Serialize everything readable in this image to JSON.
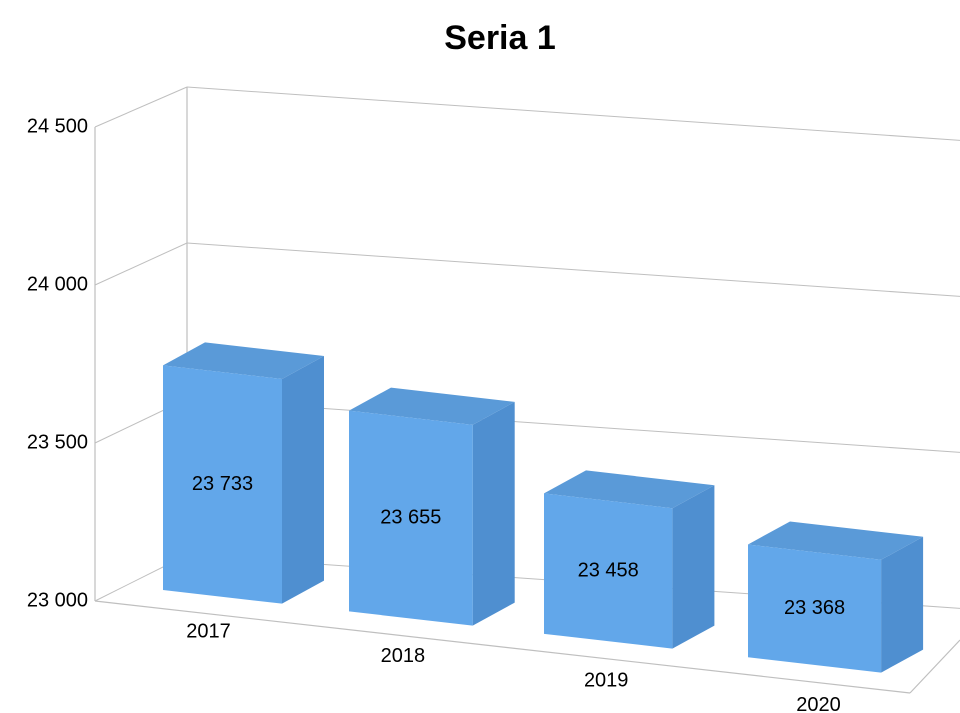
{
  "chart_data": {
    "type": "bar3d",
    "title": "Seria 1",
    "categories": [
      "2017",
      "2018",
      "2019",
      "2020"
    ],
    "values": [
      23733,
      23655,
      23458,
      23368
    ],
    "value_labels": [
      "23 733",
      "23 655",
      "23 458",
      "23 368"
    ],
    "color": "#62a7ea",
    "ylim": [
      23000,
      24500
    ],
    "yticks": [
      {
        "value": 23000,
        "label": "23 000"
      },
      {
        "value": 23500,
        "label": "23 500"
      },
      {
        "value": 24000,
        "label": "24 000"
      },
      {
        "value": 24500,
        "label": "24 500"
      }
    ],
    "grid": true
  }
}
